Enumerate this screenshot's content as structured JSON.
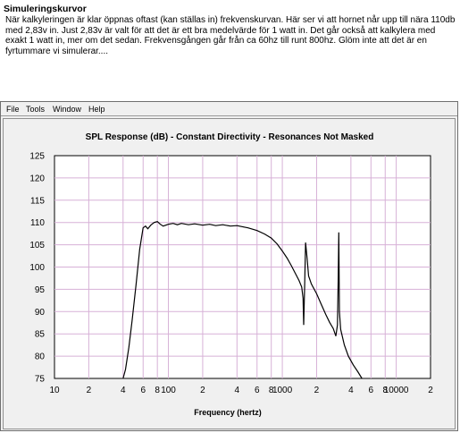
{
  "article": {
    "title": "Simuleringskurvor",
    "body": "När kalkyleringen är klar öppnas oftast (kan ställas in) frekvenskurvan. Här ser vi att hornet når upp till nära 110db med 2,83v in. Just 2,83v är valt för att det är ett bra medelvärde för 1 watt in. Det går också att kalkylera med exakt 1 watt in, mer om det sedan. Frekvensgången går från ca 60hz till runt 800hz. Glöm inte att det är en fyrtummare vi simulerar...."
  },
  "menu": {
    "items": [
      "File",
      "Tools",
      "Window",
      "Help"
    ]
  },
  "colors": {
    "grid": "#d7b1d7",
    "curve": "#000000",
    "plot_bg": "#ffffff",
    "panel_bg": "#f0f0f0"
  },
  "chart_data": {
    "type": "line",
    "title": "SPL Response (dB) - Constant Directivity - Resonances Not Masked",
    "xlabel": "Frequency (hertz)",
    "ylabel": "",
    "x_scale": "log",
    "xlim": [
      10,
      20000
    ],
    "ylim": [
      75,
      125
    ],
    "grid": true,
    "y_ticks": [
      125,
      120,
      115,
      110,
      105,
      100,
      95,
      90,
      85,
      80,
      75
    ],
    "x_ticks": [
      {
        "value": 10,
        "label": "10"
      },
      {
        "value": 20,
        "label": "2"
      },
      {
        "value": 40,
        "label": "4"
      },
      {
        "value": 60,
        "label": "6"
      },
      {
        "value": 80,
        "label": "8"
      },
      {
        "value": 100,
        "label": "100"
      },
      {
        "value": 200,
        "label": "2"
      },
      {
        "value": 400,
        "label": "4"
      },
      {
        "value": 600,
        "label": "6"
      },
      {
        "value": 800,
        "label": "8"
      },
      {
        "value": 1000,
        "label": "1000"
      },
      {
        "value": 2000,
        "label": "2"
      },
      {
        "value": 4000,
        "label": "4"
      },
      {
        "value": 6000,
        "label": "6"
      },
      {
        "value": 8000,
        "label": "8"
      },
      {
        "value": 10000,
        "label": "10000"
      },
      {
        "value": 20000,
        "label": "2"
      }
    ],
    "series": [
      {
        "name": "",
        "points": [
          [
            40,
            75
          ],
          [
            42,
            77
          ],
          [
            45,
            82
          ],
          [
            48,
            88
          ],
          [
            52,
            96
          ],
          [
            56,
            104
          ],
          [
            60,
            108.8
          ],
          [
            63,
            109.2
          ],
          [
            66,
            108.6
          ],
          [
            70,
            109.4
          ],
          [
            75,
            110.0
          ],
          [
            80,
            110.2
          ],
          [
            85,
            109.6
          ],
          [
            90,
            109.2
          ],
          [
            100,
            109.6
          ],
          [
            110,
            109.8
          ],
          [
            120,
            109.5
          ],
          [
            130,
            109.8
          ],
          [
            150,
            109.5
          ],
          [
            170,
            109.7
          ],
          [
            200,
            109.4
          ],
          [
            230,
            109.6
          ],
          [
            260,
            109.3
          ],
          [
            300,
            109.5
          ],
          [
            350,
            109.2
          ],
          [
            400,
            109.3
          ],
          [
            500,
            108.8
          ],
          [
            600,
            108.2
          ],
          [
            700,
            107.4
          ],
          [
            800,
            106.5
          ],
          [
            900,
            105.2
          ],
          [
            1000,
            103.6
          ],
          [
            1100,
            102.0
          ],
          [
            1200,
            100.3
          ],
          [
            1300,
            98.6
          ],
          [
            1400,
            97.0
          ],
          [
            1480,
            95.5
          ],
          [
            1520,
            93.0
          ],
          [
            1540,
            87.0
          ],
          [
            1570,
            96.0
          ],
          [
            1600,
            105.5
          ],
          [
            1650,
            102.0
          ],
          [
            1700,
            98.0
          ],
          [
            1800,
            96.2
          ],
          [
            2000,
            94.0
          ],
          [
            2200,
            91.6
          ],
          [
            2400,
            89.4
          ],
          [
            2600,
            87.6
          ],
          [
            2800,
            86.2
          ],
          [
            2950,
            84.5
          ],
          [
            3050,
            87.0
          ],
          [
            3100,
            98.0
          ],
          [
            3130,
            107.8
          ],
          [
            3170,
            90.0
          ],
          [
            3250,
            86.0
          ],
          [
            3500,
            82.5
          ],
          [
            3800,
            80.0
          ],
          [
            4200,
            78.0
          ],
          [
            4600,
            76.5
          ],
          [
            5000,
            75
          ]
        ]
      }
    ]
  }
}
